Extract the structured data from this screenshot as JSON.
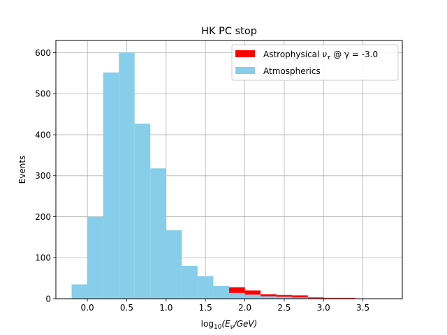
{
  "chart_data": {
    "type": "bar",
    "title": "HK PC stop",
    "xlabel": "log₁₀(Eν/GeV)",
    "xlabel_parts": {
      "base": "log",
      "sub1": "10",
      "mid": "(E",
      "sub2": "ν",
      "end": "/GeV)"
    },
    "ylabel": "Events",
    "xlim": [
      -0.4,
      4.0
    ],
    "ylim": [
      0,
      630
    ],
    "xticks": [
      "0.0",
      "0.5",
      "1.0",
      "1.5",
      "2.0",
      "2.5",
      "3.0",
      "3.5"
    ],
    "xtick_values": [
      0.0,
      0.5,
      1.0,
      1.5,
      2.0,
      2.5,
      3.0,
      3.5
    ],
    "yticks": [
      "0",
      "100",
      "200",
      "300",
      "400",
      "500",
      "600"
    ],
    "ytick_values": [
      0,
      100,
      200,
      300,
      400,
      500,
      600
    ],
    "grid": true,
    "legend_position": "top-right",
    "bin_edges": [
      -0.2,
      0.0,
      0.2,
      0.4,
      0.6,
      0.8,
      1.0,
      1.2,
      1.4,
      1.6,
      1.8,
      2.0,
      2.2,
      2.4,
      2.6,
      2.8,
      3.0,
      3.2,
      3.4,
      3.6,
      3.8
    ],
    "series": [
      {
        "name": "Astrophysical ντ @ γ = -3.0",
        "legend_parts": {
          "prefix": "Astrophysical ",
          "nu": "ν",
          "sub": "τ",
          "suffix": " @ γ = -3.0"
        },
        "color": "#ff0000",
        "stack": "top",
        "values": [
          0,
          0,
          0,
          0,
          0,
          0,
          0,
          0,
          0,
          0,
          14,
          10,
          5,
          4,
          5,
          2,
          1,
          1,
          0,
          0
        ]
      },
      {
        "name": "Atmospherics",
        "color": "#87ceeb",
        "stack": "bottom",
        "values": [
          35,
          200,
          552,
          601,
          427,
          318,
          167,
          80,
          55,
          31,
          14,
          10,
          6,
          5,
          3,
          1,
          1,
          1,
          0,
          0
        ]
      }
    ]
  }
}
